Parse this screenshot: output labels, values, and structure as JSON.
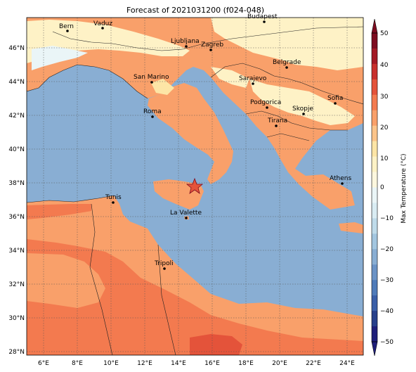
{
  "title": "Forecast of 2021031200 (f024-048)",
  "colorbar": {
    "label": "Max Temperature (°C)",
    "ticks": [
      "50",
      "40",
      "30",
      "20",
      "10",
      "0",
      "−10",
      "−20",
      "−30",
      "−40",
      "−50"
    ],
    "colors": {
      "c_m50": "#1f1f7a",
      "c_m45": "#27408b",
      "c_m40": "#3a5fa8",
      "c_m35": "#4f7bb9",
      "c_m30": "#6b93c6",
      "c_m25": "#89aed3",
      "c_m20": "#a3c6e0",
      "c_m15": "#bfdbea",
      "c_m10": "#d9ecf3",
      "c_m5": "#eaf5f7",
      "c_0": "#fdf7de",
      "c_5": "#fef2c6",
      "c_10": "#fde5a6",
      "c_15": "#fcc48a",
      "c_20": "#f9a06a",
      "c_25": "#f37a4f",
      "c_30": "#e4533a",
      "c_35": "#c8302d",
      "c_40": "#a41a25",
      "c_45": "#7d0c20"
    }
  },
  "map": {
    "lon_labels": [
      "6°E",
      "8°E",
      "10°E",
      "12°E",
      "14°E",
      "16°E",
      "18°E",
      "20°E",
      "22°E",
      "24°E"
    ],
    "lat_labels": [
      "46°N",
      "44°N",
      "42°N",
      "40°N",
      "38°N",
      "36°N",
      "34°N",
      "32°N",
      "30°N",
      "28°N"
    ],
    "cities": [
      {
        "name": "Bern",
        "key": "bern"
      },
      {
        "name": "Vaduz",
        "key": "vaduz"
      },
      {
        "name": "Ljubljana",
        "key": "ljubljana"
      },
      {
        "name": "Zagreb",
        "key": "zagreb"
      },
      {
        "name": "Budapest",
        "key": "budapest"
      },
      {
        "name": "Belgrade",
        "key": "belgrade"
      },
      {
        "name": "San Marino",
        "key": "sanmarino"
      },
      {
        "name": "Sarajevo",
        "key": "sarajevo"
      },
      {
        "name": "Sofia",
        "key": "sofia"
      },
      {
        "name": "Roma",
        "key": "roma"
      },
      {
        "name": "Podgorica",
        "key": "podgorica"
      },
      {
        "name": "Skopje",
        "key": "skopje"
      },
      {
        "name": "Tirana",
        "key": "tirana"
      },
      {
        "name": "Athens",
        "key": "athens"
      },
      {
        "name": "Tunis",
        "key": "tunis"
      },
      {
        "name": "La Valette",
        "key": "lavalette"
      },
      {
        "name": "Tripoli",
        "key": "tripoli"
      }
    ]
  }
}
